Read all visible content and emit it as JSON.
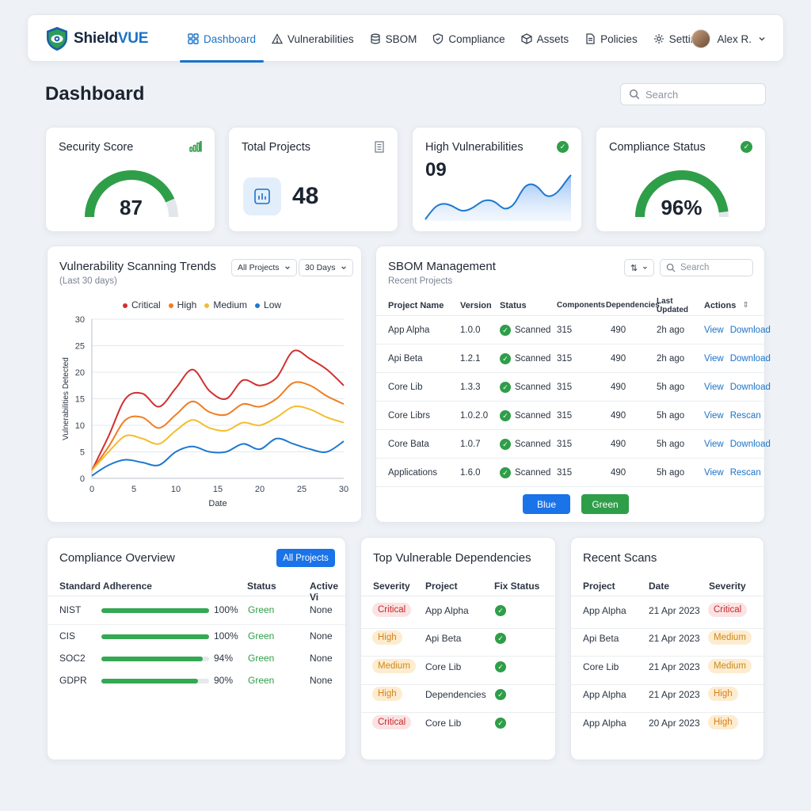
{
  "brand": {
    "name_part1": "Shield",
    "name_part2": "VUE"
  },
  "nav": {
    "items": [
      {
        "label": "Dashboard",
        "icon": "grid-icon"
      },
      {
        "label": "Vulnerabilities",
        "icon": "warning-icon"
      },
      {
        "label": "SBOM",
        "icon": "database-icon"
      },
      {
        "label": "Compliance",
        "icon": "shield-icon"
      },
      {
        "label": "Assets",
        "icon": "box-icon"
      },
      {
        "label": "Policies",
        "icon": "document-icon"
      },
      {
        "label": "Settings",
        "icon": "gear-icon"
      }
    ],
    "user": "Alex R."
  },
  "page": {
    "title": "Dashboard",
    "search_placeholder": "Search"
  },
  "kpis": {
    "security_score": {
      "title": "Security Score",
      "value": "87",
      "score": 87
    },
    "total_projects": {
      "title": "Total Projects",
      "value": "48"
    },
    "high_vulns": {
      "title": "High Vulnerabilities",
      "value": "09"
    },
    "compliance": {
      "title": "Compliance Status",
      "value": "96%",
      "score": 96
    }
  },
  "trends": {
    "title": "Vulnerability Scanning Trends",
    "subtitle": "(Last 30 days)",
    "filter_projects": "All Projects",
    "filter_range": "30 Days"
  },
  "chart_data": {
    "type": "line",
    "title": "Vulnerability Scanning Trends",
    "subtitle": "(Last 30 days)",
    "xlabel": "Date",
    "ylabel": "Vulnerabilities Detected",
    "xlim": [
      0,
      30
    ],
    "ylim": [
      0,
      30
    ],
    "xticks": [
      0,
      5,
      10,
      15,
      20,
      25,
      30
    ],
    "yticks": [
      0,
      5,
      10,
      15,
      20,
      25,
      30
    ],
    "legend": "top",
    "x": [
      0,
      2,
      4,
      6,
      8,
      10,
      12,
      14,
      16,
      18,
      20,
      22,
      24,
      26,
      28,
      30
    ],
    "series": [
      {
        "name": "Critical",
        "color": "#d32f2f",
        "values": [
          1.5,
          8,
          15,
          16,
          13.5,
          17,
          20.5,
          16.5,
          15,
          18.5,
          17.5,
          19,
          24,
          22.5,
          20.5,
          17.5
        ]
      },
      {
        "name": "High",
        "color": "#ef7d22",
        "values": [
          1.5,
          6,
          11,
          11.5,
          9.5,
          12,
          14.5,
          12.5,
          12,
          14,
          13.5,
          15,
          18,
          17.5,
          15.5,
          14
        ]
      },
      {
        "name": "Medium",
        "color": "#f3bd2d",
        "values": [
          1.5,
          5,
          8,
          7.5,
          6.5,
          9,
          11,
          9.5,
          9,
          10.5,
          10,
          11.5,
          13.5,
          13,
          11.5,
          10.5
        ]
      },
      {
        "name": "Low",
        "color": "#1e78d0",
        "values": [
          0.5,
          2.5,
          3.5,
          3,
          2.5,
          5,
          6,
          5,
          5,
          6.5,
          5.5,
          7.5,
          6.5,
          5.5,
          5,
          7
        ]
      }
    ]
  },
  "sbom": {
    "title": "SBOM Management",
    "subtitle": "Recent Projects",
    "search_placeholder": "Search",
    "columns": [
      "Project Name",
      "Version",
      "Status",
      "Components",
      "Dependencies",
      "Last Updated",
      "Actions"
    ],
    "rows": [
      {
        "name": "App Alpha",
        "version": "1.0.0",
        "status": "Scanned",
        "components": "315",
        "dependencies": "490",
        "updated": "2h ago",
        "a1": "View",
        "a2": "Download"
      },
      {
        "name": "Api Beta",
        "version": "1.2.1",
        "status": "Scanned",
        "components": "315",
        "dependencies": "490",
        "updated": "2h ago",
        "a1": "View",
        "a2": "Download"
      },
      {
        "name": "Core Lib",
        "version": "1.3.3",
        "status": "Scanned",
        "components": "315",
        "dependencies": "490",
        "updated": "5h ago",
        "a1": "View",
        "a2": "Download"
      },
      {
        "name": "Core Librs",
        "version": "1.0.2.0",
        "status": "Scanned",
        "components": "315",
        "dependencies": "490",
        "updated": "5h ago",
        "a1": "View",
        "a2": "Rescan"
      },
      {
        "name": "Core Bata",
        "version": "1.0.7",
        "status": "Scanned",
        "components": "315",
        "dependencies": "490",
        "updated": "5h ago",
        "a1": "View",
        "a2": "Download"
      },
      {
        "name": "Applications",
        "version": "1.6.0",
        "status": "Scanned",
        "components": "315",
        "dependencies": "490",
        "updated": "5h ago",
        "a1": "View",
        "a2": "Rescan"
      }
    ],
    "button_blue": "Blue",
    "button_green": "Green"
  },
  "compliance_overview": {
    "title": "Compliance Overview",
    "button": "All Projects",
    "columns": [
      "Standard Adherence",
      "Status",
      "Active Vi"
    ],
    "rows": [
      {
        "standard": "NIST",
        "percent": "100%",
        "fraction": 1.0,
        "status": "Green",
        "active": "None"
      },
      {
        "standard": "CIS",
        "percent": "100%",
        "fraction": 1.0,
        "status": "Green",
        "active": "None"
      },
      {
        "standard": "SOC2",
        "percent": "94%",
        "fraction": 0.94,
        "status": "Green",
        "active": "None"
      },
      {
        "standard": "GDPR",
        "percent": "90%",
        "fraction": 0.9,
        "status": "Green",
        "active": "None"
      }
    ]
  },
  "top_deps": {
    "title": "Top Vulnerable Dependencies",
    "columns": [
      "Severity",
      "Project",
      "Fix Status"
    ],
    "rows": [
      {
        "severity": "Critical",
        "level": "critical",
        "project": "App Alpha"
      },
      {
        "severity": "High",
        "level": "high",
        "project": "Api Beta"
      },
      {
        "severity": "Medium",
        "level": "medium",
        "project": "Core Lib"
      },
      {
        "severity": "High",
        "level": "high",
        "project": "Dependencies"
      },
      {
        "severity": "Critical",
        "level": "critical",
        "project": "Core Lib"
      }
    ]
  },
  "recent_scans": {
    "title": "Recent Scans",
    "columns": [
      "Project",
      "Date",
      "Severity"
    ],
    "rows": [
      {
        "project": "App Alpha",
        "date": "21 Apr 2023",
        "severity": "Critical",
        "level": "critical"
      },
      {
        "project": "Api Beta",
        "date": "21 Apr 2023",
        "severity": "Medium",
        "level": "medium"
      },
      {
        "project": "Core Lib",
        "date": "21 Apr 2023",
        "severity": "Medium",
        "level": "medium"
      },
      {
        "project": "App Alpha",
        "date": "21 Apr 2023",
        "severity": "High",
        "level": "high"
      },
      {
        "project": "App Alpha",
        "date": "20 Apr 2023",
        "severity": "High",
        "level": "high"
      }
    ]
  }
}
